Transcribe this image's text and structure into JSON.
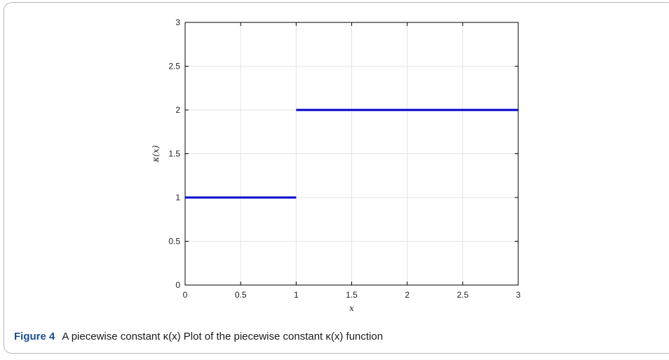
{
  "chart_data": {
    "type": "line",
    "xlabel": "x",
    "ylabel": "κ(x)",
    "xlim": [
      0,
      3
    ],
    "ylim": [
      0,
      3
    ],
    "xticks": [
      0,
      0.5,
      1,
      1.5,
      2,
      2.5,
      3
    ],
    "yticks": [
      0,
      0.5,
      1,
      1.5,
      2,
      2.5,
      3
    ],
    "xtick_labels": [
      "0",
      "0.5",
      "1",
      "1.5",
      "2",
      "2.5",
      "3"
    ],
    "ytick_labels": [
      "0",
      "0.5",
      "1",
      "1.5",
      "2",
      "2.5",
      "3"
    ],
    "grid": true,
    "series": [
      {
        "color": "#0000cc",
        "segments": [
          {
            "x": [
              0,
              1
            ],
            "y": [
              1,
              1
            ]
          },
          {
            "x": [
              1,
              3
            ],
            "y": [
              2,
              2
            ]
          }
        ]
      }
    ]
  },
  "caption": {
    "label": "Figure 4",
    "text": "A piecewise constant κ(x) Plot of the piecewise constant κ(x) function"
  }
}
